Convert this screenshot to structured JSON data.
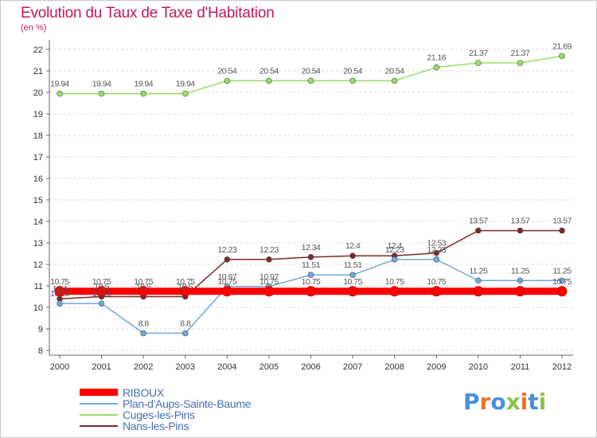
{
  "header": {
    "title": "Evolution du Taux de Taxe d'Habitation",
    "subtitle": "(en %)"
  },
  "logo": {
    "text": "Proxiti",
    "letter_colors": [
      "#4a90d9",
      "#e8732a",
      "#4a90d9",
      "#8bc34a",
      "#e8732a",
      "#4a90d9",
      "#8bc34a"
    ]
  },
  "chart_data": {
    "type": "line",
    "title": "Evolution du Taux de Taxe d'Habitation",
    "ylabel": "(en %)",
    "xlabel": "",
    "x": [
      "2000",
      "2001",
      "2002",
      "2003",
      "2004",
      "2005",
      "2006",
      "2007",
      "2008",
      "2009",
      "2010",
      "2011",
      "2012"
    ],
    "ylim": [
      8,
      22
    ],
    "yticks": [
      8,
      9,
      10,
      11,
      12,
      13,
      14,
      15,
      16,
      17,
      18,
      19,
      20,
      21,
      22
    ],
    "grid": "horizontal",
    "legend": "bottom-left",
    "series": [
      {
        "name": "RIBOUX",
        "color": "#ff0000",
        "values": [
          10.75,
          10.75,
          10.75,
          10.75,
          10.75,
          10.75,
          10.75,
          10.75,
          10.75,
          10.75,
          10.75,
          10.75,
          10.75
        ],
        "labels": [
          "10.75",
          "10.75",
          "10.75",
          "10.75",
          "10.75",
          "10.75",
          "10.75",
          "10.75",
          "10.75",
          "10.75",
          "",
          "",
          "10.75"
        ]
      },
      {
        "name": "Plan-d'Aups-Sainte-Baume",
        "color": "#6fa8dc",
        "values": [
          10.18,
          10.18,
          8.8,
          8.8,
          10.97,
          10.97,
          11.51,
          11.51,
          12.23,
          12.23,
          11.25,
          11.25,
          11.25
        ],
        "labels": [
          "10.18",
          "10.18",
          "8.8",
          "8.8",
          "10.97",
          "10.97",
          "11.51",
          "11.51",
          "12.23",
          "12.23",
          "11.25",
          "11.25",
          "11.25"
        ]
      },
      {
        "name": "Cuges-les-Pins",
        "color": "#99dd66",
        "values": [
          19.94,
          19.94,
          19.94,
          19.94,
          20.54,
          20.54,
          20.54,
          20.54,
          20.54,
          21.16,
          21.37,
          21.37,
          21.69
        ],
        "labels": [
          "19.94",
          "19.94",
          "19.94",
          "19.94",
          "20.54",
          "20.54",
          "20.54",
          "20.54",
          "20.54",
          "21.16",
          "21.37",
          "21.37",
          "21.69"
        ]
      },
      {
        "name": "Nans-les-Pins",
        "color": "#7b2a2a",
        "values": [
          10.4,
          10.5,
          10.5,
          10.5,
          12.23,
          12.23,
          12.34,
          12.4,
          12.4,
          12.53,
          13.57,
          13.57,
          13.57
        ],
        "labels": [
          "10.4",
          "10.5",
          "10.5",
          "10.5",
          "12.23",
          "12.23",
          "12.34",
          "12.4",
          "12.4",
          "12.53",
          "13.57",
          "13.57",
          "13.57"
        ]
      }
    ]
  }
}
